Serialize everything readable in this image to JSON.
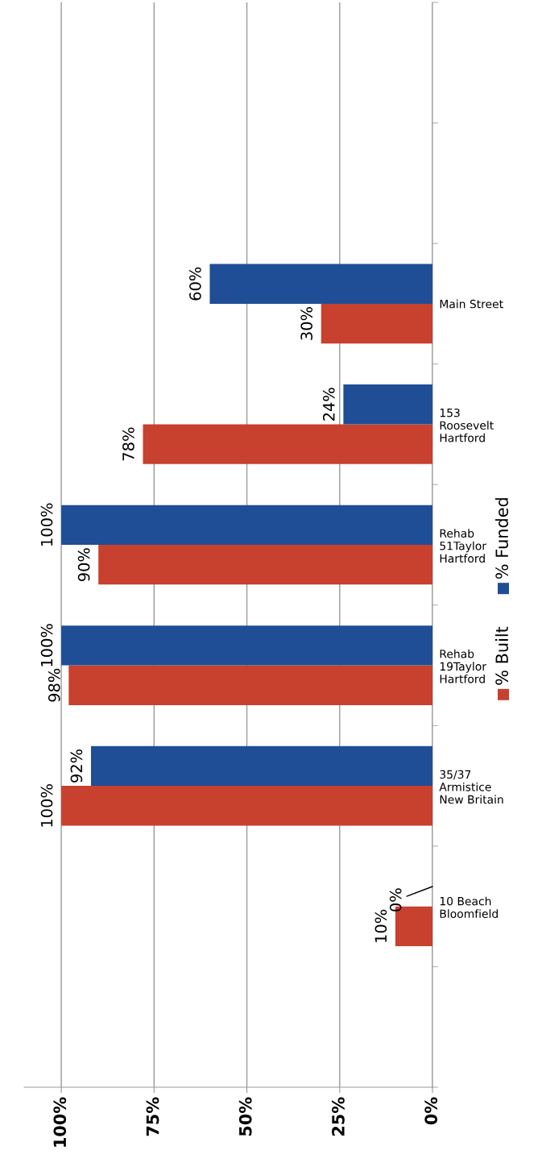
{
  "chart_data": {
    "type": "bar",
    "orientation": "horizontal",
    "categories": [
      null,
      null,
      "Main Street",
      "153\nRoosevelt\nHartford",
      "Rehab\n51Taylor\nHartford",
      "Rehab\n19Taylor\nHartford",
      "35/37\nArmistice\nNew Britain",
      "10 Beach\nBloomfield",
      null
    ],
    "series": [
      {
        "name": "% Built",
        "color": "#c8402e",
        "values": [
          null,
          null,
          30,
          78,
          90,
          98,
          100,
          10,
          null
        ],
        "value_labels": [
          null,
          null,
          "30%",
          "78%",
          "90%",
          "98%",
          "100%",
          "10%",
          null
        ]
      },
      {
        "name": "% Funded",
        "color": "#1f4e96",
        "values": [
          null,
          null,
          60,
          24,
          100,
          100,
          92,
          0,
          null
        ],
        "value_labels": [
          null,
          null,
          "60%",
          "24%",
          "100%",
          "100%",
          "92%",
          "0%",
          null
        ]
      }
    ],
    "xlim": [
      110,
      0
    ],
    "xticks": [
      {
        "value": 100,
        "label": "100%"
      },
      {
        "value": 75,
        "label": "75%"
      },
      {
        "value": 50,
        "label": "50%"
      },
      {
        "value": 25,
        "label": "25%"
      },
      {
        "value": 0,
        "label": "0%"
      }
    ],
    "grid": "x",
    "legend": "right"
  }
}
